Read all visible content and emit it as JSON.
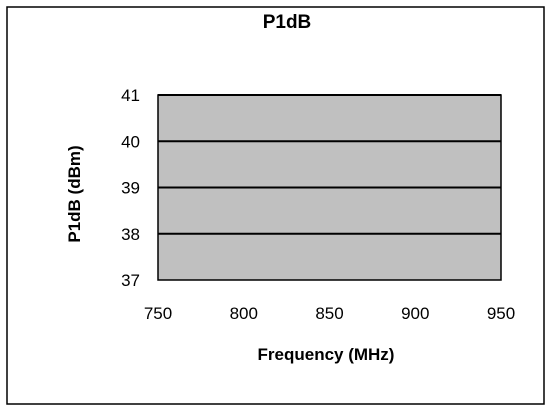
{
  "chart_data": {
    "type": "line",
    "title": "P1dB",
    "xlabel": "Frequency (MHz)",
    "ylabel": "P1dB (dBm)",
    "xlim": [
      750,
      950
    ],
    "ylim": [
      37,
      41
    ],
    "x_ticks": [
      750,
      800,
      850,
      900,
      950
    ],
    "y_ticks": [
      37,
      38,
      39,
      40,
      41
    ],
    "grid": "horizontal",
    "plot_background": "#c0c0c0",
    "series": []
  }
}
